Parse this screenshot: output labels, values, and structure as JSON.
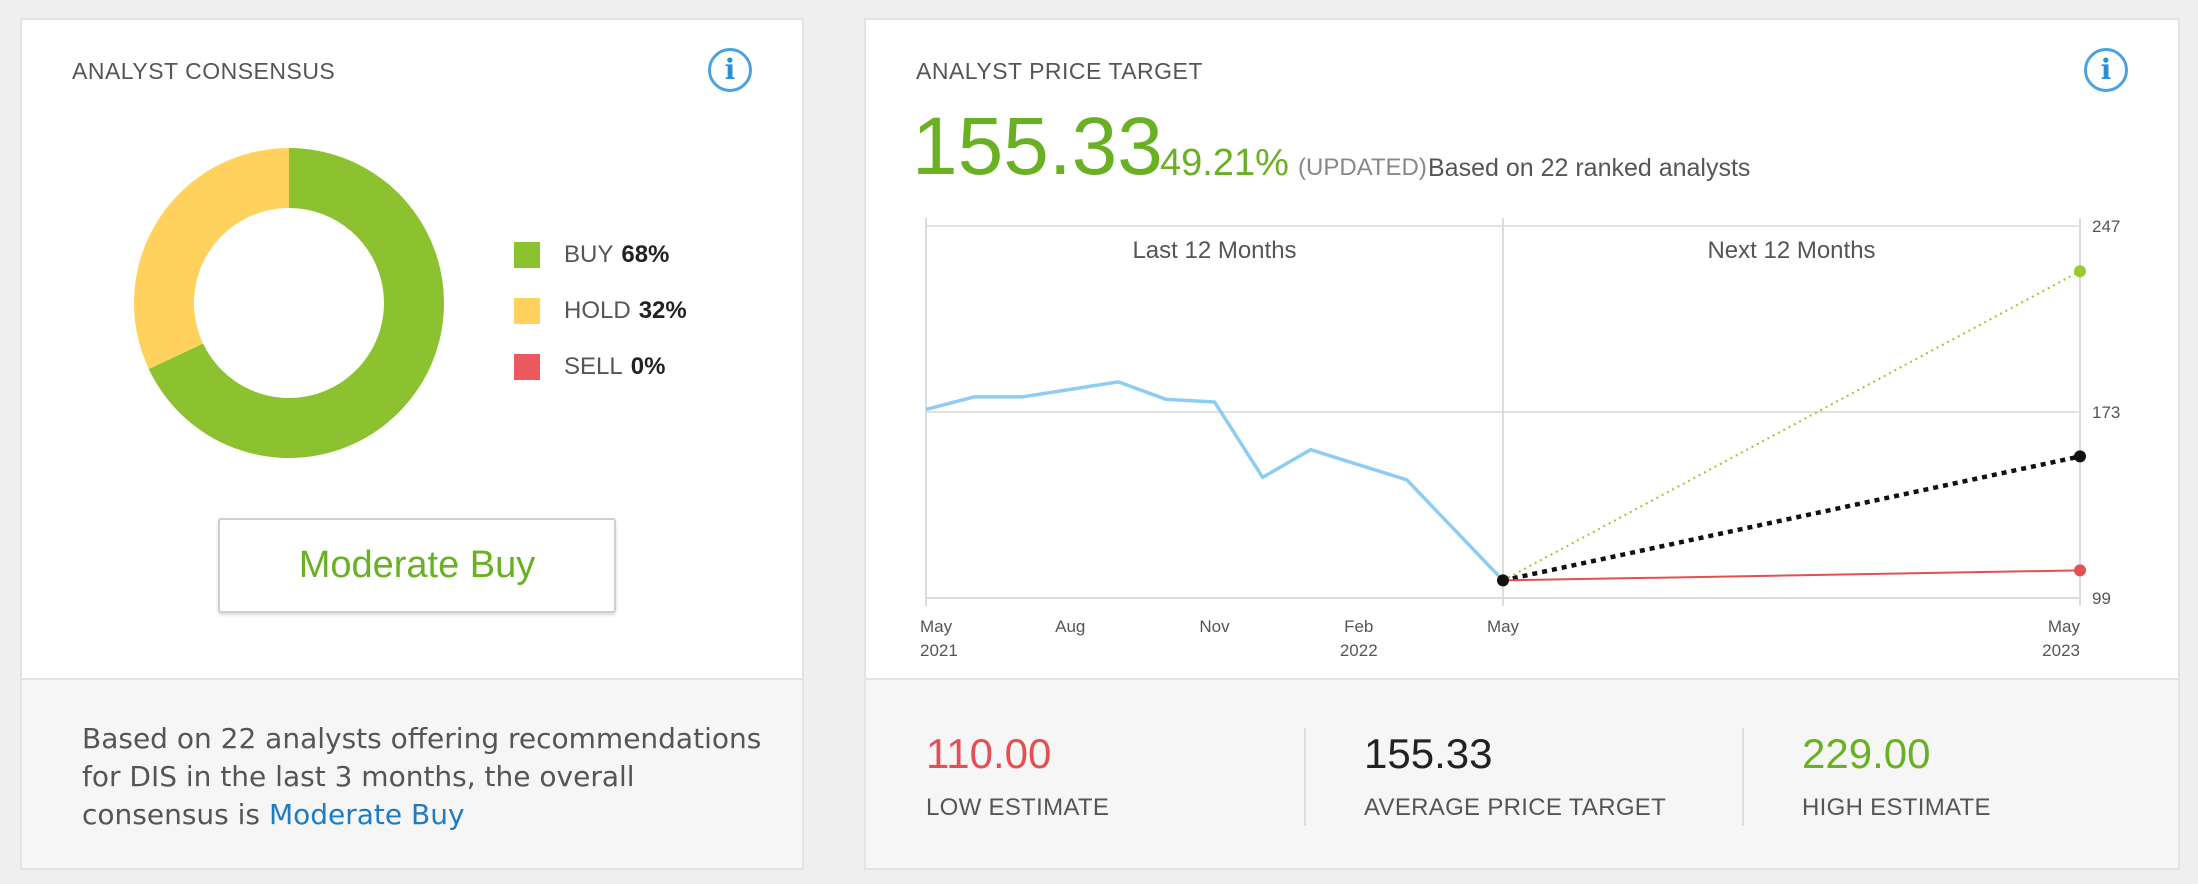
{
  "consensus": {
    "title": "ANALYST CONSENSUS",
    "legend": [
      {
        "label": "BUY",
        "value": "68%",
        "pct": 68,
        "color": "#8cc230"
      },
      {
        "label": "HOLD",
        "value": "32%",
        "pct": 32,
        "color": "#ffd25e"
      },
      {
        "label": "SELL",
        "value": "0%",
        "pct": 0,
        "color": "#e9595d"
      }
    ],
    "rating": "Moderate Buy",
    "summary_text": "Based on 22 analysts offering recommendations for DIS in the last 3 months, the overall consensus is",
    "summary_link": "Moderate Buy"
  },
  "price_target": {
    "title": "ANALYST PRICE TARGET",
    "value": "155.33",
    "change": "49.21%",
    "updated": "(UPDATED)",
    "based_on": "Based on 22 ranked analysts",
    "estimates": [
      {
        "value": "110.00",
        "label": "LOW ESTIMATE",
        "color": "#e34f52"
      },
      {
        "value": "155.33",
        "label": "AVERAGE PRICE TARGET",
        "color": "#222222"
      },
      {
        "value": "229.00",
        "label": "HIGH ESTIMATE",
        "color": "#6ab023"
      }
    ]
  },
  "chart_data": {
    "type": "line",
    "section_labels": [
      "Last 12 Months",
      "Next 12 Months"
    ],
    "ylim": [
      99,
      247
    ],
    "y_ticks": [
      99,
      173,
      247
    ],
    "x_ticks": [
      {
        "month": "May",
        "year": "2021",
        "t": 0
      },
      {
        "month": "Aug",
        "year": "",
        "t": 3
      },
      {
        "month": "Nov",
        "year": "",
        "t": 6
      },
      {
        "month": "Feb",
        "year": "2022",
        "t": 9
      },
      {
        "month": "May",
        "year": "",
        "t": 12
      },
      {
        "month": "May",
        "year": "2023",
        "t": 24
      }
    ],
    "series": [
      {
        "color": "#8ecdf0",
        "t": [
          0,
          1,
          2,
          3,
          4,
          5,
          6,
          7,
          8,
          9,
          10,
          11,
          12
        ],
        "values": [
          174,
          179,
          179,
          182,
          185,
          178,
          177,
          147,
          158,
          152,
          146,
          126,
          106
        ]
      }
    ],
    "forecasts": [
      {
        "name": "High",
        "from": 106,
        "to": 229,
        "color": "#9cc72e",
        "style": "dotted"
      },
      {
        "name": "Average",
        "from": 106,
        "to": 155.33,
        "color": "#111111",
        "style": "dashed"
      },
      {
        "name": "Low",
        "from": 106,
        "to": 110,
        "color": "#e34f52",
        "style": "solid"
      }
    ],
    "grid": true
  }
}
